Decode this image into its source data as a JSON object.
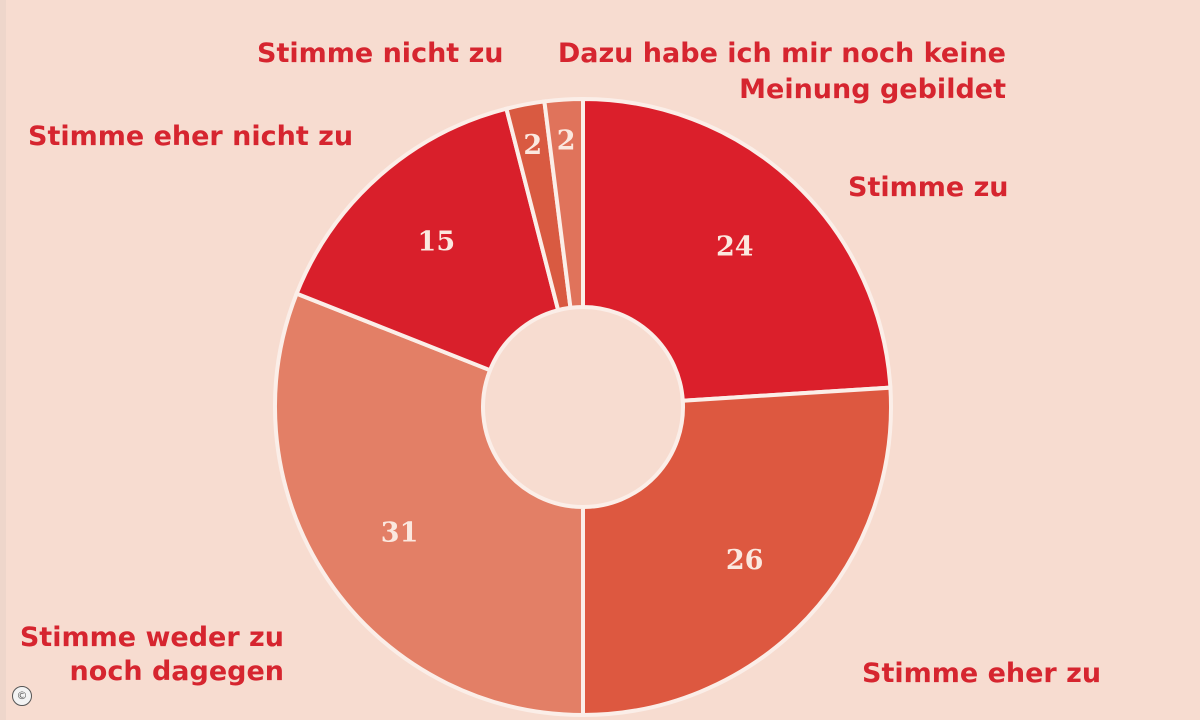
{
  "chart_data": {
    "type": "pie",
    "donut": true,
    "title": "",
    "start": "top, clockwise",
    "slices": [
      {
        "label": "Stimme zu",
        "value": 24,
        "color": "#db1f2b"
      },
      {
        "label": "Stimme eher zu",
        "value": 26,
        "color": "#dd5840"
      },
      {
        "label": "Stimme weder zu noch dagegen",
        "value": 31,
        "color": "#e37f66"
      },
      {
        "label": "Stimme eher nicht zu",
        "value": 15,
        "color": "#d91f2b"
      },
      {
        "label": "Stimme nicht zu",
        "value": 2,
        "color": "#d95a41"
      },
      {
        "label": "Dazu habe ich mir noch keine Meinung gebildet",
        "value": 2,
        "color": "#e0735b"
      }
    ],
    "label_lines": {
      "s0": [
        "Stimme zu"
      ],
      "s1": [
        "Stimme eher zu"
      ],
      "s2": [
        "Stimme weder zu",
        "noch dagegen"
      ],
      "s3": [
        "Stimme eher nicht zu"
      ],
      "s4": [
        "Stimme nicht zu"
      ],
      "s5": [
        "Dazu habe ich mir noch keine",
        "Meinung gebildet"
      ]
    }
  },
  "copyright_symbol": "©"
}
